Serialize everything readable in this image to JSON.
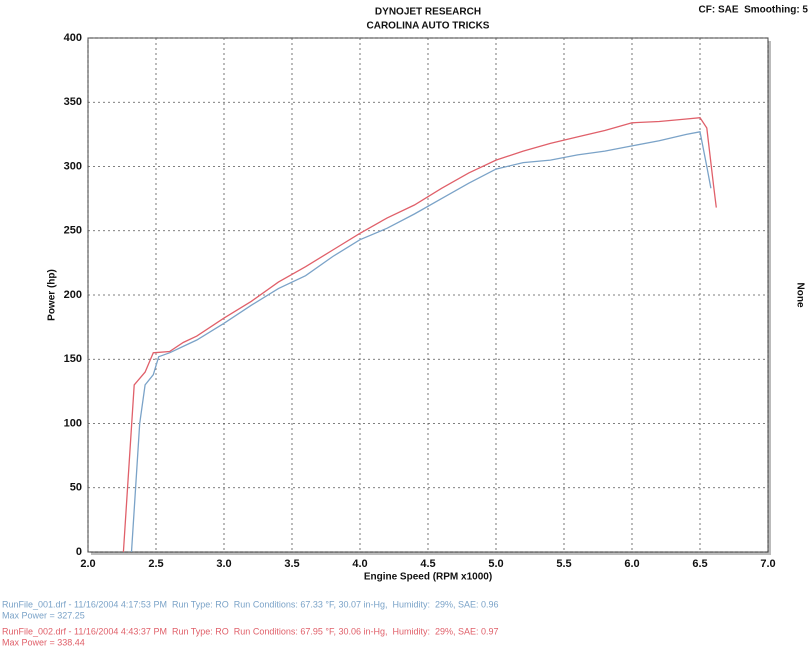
{
  "chart_data": {
    "type": "line",
    "title": "DYNOJET RESEARCH",
    "subtitle": "CAROLINA AUTO TRICKS",
    "header_right": "CF: SAE  Smoothing: 5",
    "side_label": "None",
    "x_label": "Engine Speed (RPM x1000)",
    "y_label": "Power (hp)",
    "xlim": [
      2,
      7
    ],
    "xticks": [
      {
        "value": 2,
        "label": "2.0"
      },
      2.5,
      {
        "value": 3,
        "label": "3.0"
      },
      3.5,
      {
        "value": 4,
        "label": "4.0"
      },
      4.5,
      {
        "value": 5,
        "label": "5.0"
      },
      5.5,
      {
        "value": 6,
        "label": "6.0"
      },
      6.5,
      {
        "value": 7,
        "label": "7.0"
      }
    ],
    "ylim": [
      0,
      400
    ],
    "yticks": [
      0,
      50,
      100,
      150,
      200,
      250,
      300,
      350,
      400
    ],
    "grid": true,
    "series": [
      {
        "name": "RunFile_001.drf - 11/16/2004 4:17:53 PM  Run Type: RO  Run Conditions: 67.33 °F, 30.07 in-Hg,  Humidity:  29%, SAE: 0.96",
        "max_label": "Max Power = 327.25",
        "color": "#7ba3c8",
        "x": [
          2.32,
          2.38,
          2.42,
          2.48,
          2.52,
          2.6,
          2.7,
          2.8,
          3.0,
          3.2,
          3.4,
          3.6,
          3.8,
          4.0,
          4.2,
          4.4,
          4.6,
          4.8,
          5.0,
          5.2,
          5.4,
          5.6,
          5.8,
          6.0,
          6.2,
          6.4,
          6.5,
          6.55,
          6.58
        ],
        "values": [
          0,
          100,
          130,
          138,
          152,
          155,
          160,
          165,
          178,
          192,
          205,
          215,
          230,
          243,
          252,
          263,
          275,
          287,
          298,
          303,
          305,
          309,
          312,
          316,
          320,
          325,
          327,
          300,
          283
        ]
      },
      {
        "name": "RunFile_002.drf - 11/16/2004 4:43:37 PM  Run Type: RO  Run Conditions: 67.95 °F, 30.06 in-Hg,  Humidity:  29%, SAE: 0.97",
        "max_label": "Max Power = 338.44",
        "color": "#e0606a",
        "x": [
          2.26,
          2.34,
          2.42,
          2.48,
          2.6,
          2.7,
          2.8,
          3.0,
          3.2,
          3.4,
          3.6,
          3.8,
          4.0,
          4.2,
          4.4,
          4.6,
          4.8,
          5.0,
          5.2,
          5.4,
          5.6,
          5.8,
          6.0,
          6.2,
          6.4,
          6.5,
          6.55,
          6.6,
          6.62
        ],
        "values": [
          0,
          130,
          140,
          155,
          156,
          163,
          168,
          182,
          195,
          210,
          222,
          235,
          248,
          260,
          270,
          283,
          295,
          305,
          312,
          318,
          323,
          328,
          334,
          335,
          337,
          338,
          330,
          285,
          268
        ]
      }
    ]
  }
}
